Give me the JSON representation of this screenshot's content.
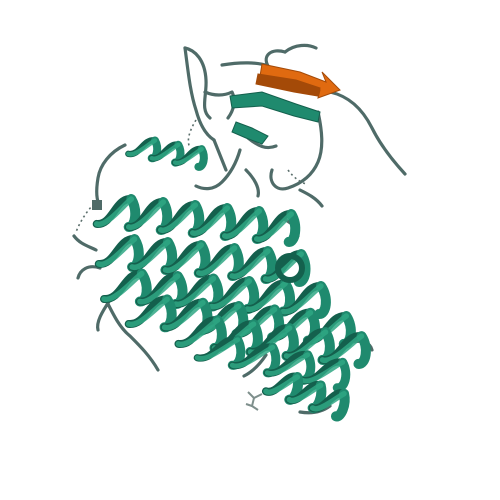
{
  "image": {
    "subject": "protein-cartoon",
    "background": "#ffffff"
  },
  "colors": {
    "helix": "#1f8a6e",
    "helix_dark": "#14604d",
    "helix_light": "#2fa784",
    "strand": "#e06a10",
    "strand_dark": "#a44a08",
    "coil": "#4f6b68",
    "ligand": "#7e8f8c",
    "dashed": "#5a6e6b"
  }
}
